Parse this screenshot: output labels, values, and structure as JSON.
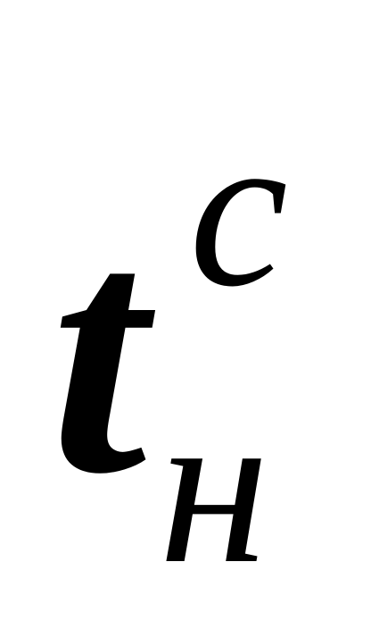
{
  "formula": {
    "base": "t",
    "superscript": "c",
    "subscript": "н"
  }
}
